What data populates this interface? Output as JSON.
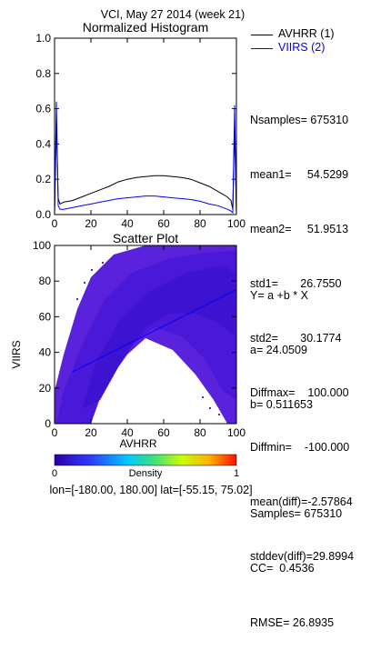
{
  "page_title": "VCI,  May 27 2014 (week 21)",
  "footer": "lon=[-180.00, 180.00] lat=[-55.15, 75.02]",
  "colors": {
    "avhrr": "#000000",
    "viirs": "#0000ff",
    "fit": "#0000ff"
  },
  "chart_data": [
    {
      "type": "line",
      "title": "Normalized Histogram",
      "xlim": [
        0,
        100
      ],
      "ylim": [
        0,
        1.0
      ],
      "xticks": [
        "0",
        "20",
        "40",
        "60",
        "80",
        "100"
      ],
      "yticks": [
        "0.0",
        "0.2",
        "0.4",
        "0.6",
        "0.8",
        "1.0"
      ],
      "x": [
        0,
        1,
        2,
        3,
        5,
        10,
        15,
        20,
        25,
        30,
        35,
        40,
        45,
        50,
        55,
        60,
        65,
        70,
        75,
        80,
        85,
        90,
        95,
        97,
        98,
        99,
        100
      ],
      "series": [
        {
          "name": "AVHRR (1)",
          "values": [
            0.0,
            0.52,
            0.09,
            0.06,
            0.07,
            0.08,
            0.1,
            0.12,
            0.14,
            0.16,
            0.185,
            0.2,
            0.21,
            0.215,
            0.22,
            0.22,
            0.215,
            0.21,
            0.2,
            0.18,
            0.16,
            0.13,
            0.1,
            0.08,
            0.03,
            0.5,
            0.0
          ]
        },
        {
          "name": "VIIRS (2)",
          "values": [
            0.0,
            0.64,
            0.05,
            0.03,
            0.03,
            0.04,
            0.05,
            0.06,
            0.07,
            0.08,
            0.09,
            0.095,
            0.1,
            0.105,
            0.105,
            0.1,
            0.095,
            0.09,
            0.085,
            0.075,
            0.06,
            0.05,
            0.03,
            0.02,
            0.01,
            0.62,
            0.0
          ]
        }
      ]
    },
    {
      "type": "scatter",
      "title": "Scatter Plot",
      "xlabel": "AVHRR",
      "ylabel": "VIIRS",
      "xlim": [
        0,
        100
      ],
      "ylim": [
        0,
        100
      ],
      "xticks": [
        "0",
        "20",
        "40",
        "60",
        "80",
        "100"
      ],
      "yticks": [
        "0",
        "20",
        "40",
        "60",
        "80",
        "100"
      ],
      "fit": {
        "a": 24.0509,
        "b": 0.511653
      },
      "colorbar": {
        "label": "Density",
        "min": "0",
        "max": "1"
      }
    }
  ],
  "legend": [
    {
      "label": "AVHRR (1)",
      "color": "#000000"
    },
    {
      "label": "VIIRS (2)",
      "color": "#0000ff"
    }
  ],
  "stats": [
    "Nsamples= 675310",
    "mean1=     54.5299",
    "mean2=     51.9513",
    "std1=       26.7550",
    "std2=       30.1774",
    "Diffmax=    100.000",
    "Diffmin=    -100.000",
    "mean(diff)=-2.57864",
    "stddev(diff)=29.8994"
  ],
  "fit_stats": [
    "Y= a +b * X",
    "a= 24.0509",
    "b= 0.511653",
    "",
    "Samples= 675310",
    "CC=  0.4536",
    "RMSE= 26.8935"
  ]
}
